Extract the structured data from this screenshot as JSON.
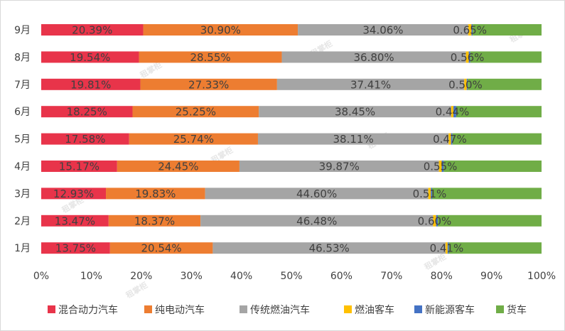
{
  "chart_data": {
    "type": "bar",
    "orientation": "horizontal",
    "stacked": "percent",
    "categories": [
      "1月",
      "2月",
      "3月",
      "4月",
      "5月",
      "6月",
      "7月",
      "8月",
      "9月"
    ],
    "series": [
      {
        "name": "混合动力汽车",
        "color": "#e8344a",
        "values": [
          13.75,
          13.47,
          12.93,
          15.17,
          17.58,
          18.25,
          19.81,
          19.54,
          20.39
        ],
        "labels": [
          "13.75%",
          "13.47%",
          "12.93%",
          "15.17%",
          "17.58%",
          "18.25%",
          "19.81%",
          "19.54%",
          "20.39%"
        ]
      },
      {
        "name": "纯电动汽车",
        "color": "#ed7d31",
        "values": [
          20.54,
          18.37,
          19.83,
          24.45,
          25.74,
          25.25,
          27.33,
          28.55,
          30.9
        ],
        "labels": [
          "20.54%",
          "18.37%",
          "19.83%",
          "24.45%",
          "25.74%",
          "25.25%",
          "27.33%",
          "28.55%",
          "30.90%"
        ]
      },
      {
        "name": "传统燃油汽车",
        "color": "#a5a5a5",
        "values": [
          46.53,
          46.48,
          44.6,
          39.87,
          38.11,
          38.45,
          37.41,
          36.8,
          34.06
        ],
        "labels": [
          "46.53%",
          "46.48%",
          "44.60%",
          "39.87%",
          "38.11%",
          "38.45%",
          "37.41%",
          "36.80%",
          "34.06%"
        ]
      },
      {
        "name": "燃油客车",
        "color": "#ffc000",
        "values": [
          0.41,
          0.6,
          0.51,
          0.55,
          0.47,
          0.44,
          0.5,
          0.56,
          0.65
        ],
        "labels": [
          "0.41%",
          "0.60%",
          "0.51%",
          "0.55%",
          "0.47%",
          "0.44%",
          "0.50%",
          "0.56%",
          "0.65%"
        ]
      },
      {
        "name": "新能源客车",
        "color": "#4472c4",
        "values": [
          0.25,
          0.35,
          0.25,
          0.4,
          0.3,
          0.55,
          0.2,
          0.3,
          0.25
        ],
        "labels": []
      },
      {
        "name": "货车",
        "color": "#70ad47",
        "values": [
          18.52,
          20.73,
          21.88,
          19.56,
          17.8,
          17.06,
          14.75,
          14.25,
          13.75
        ],
        "labels": []
      }
    ],
    "x_axis": {
      "ticks": [
        "0%",
        "10%",
        "20%",
        "30%",
        "40%",
        "50%",
        "60%",
        "70%",
        "80%",
        "90%",
        "100%"
      ],
      "range": [
        0,
        100
      ]
    },
    "title": "",
    "grid": false,
    "legend_position": "bottom"
  },
  "watermark": {
    "text": "租掌柜"
  }
}
